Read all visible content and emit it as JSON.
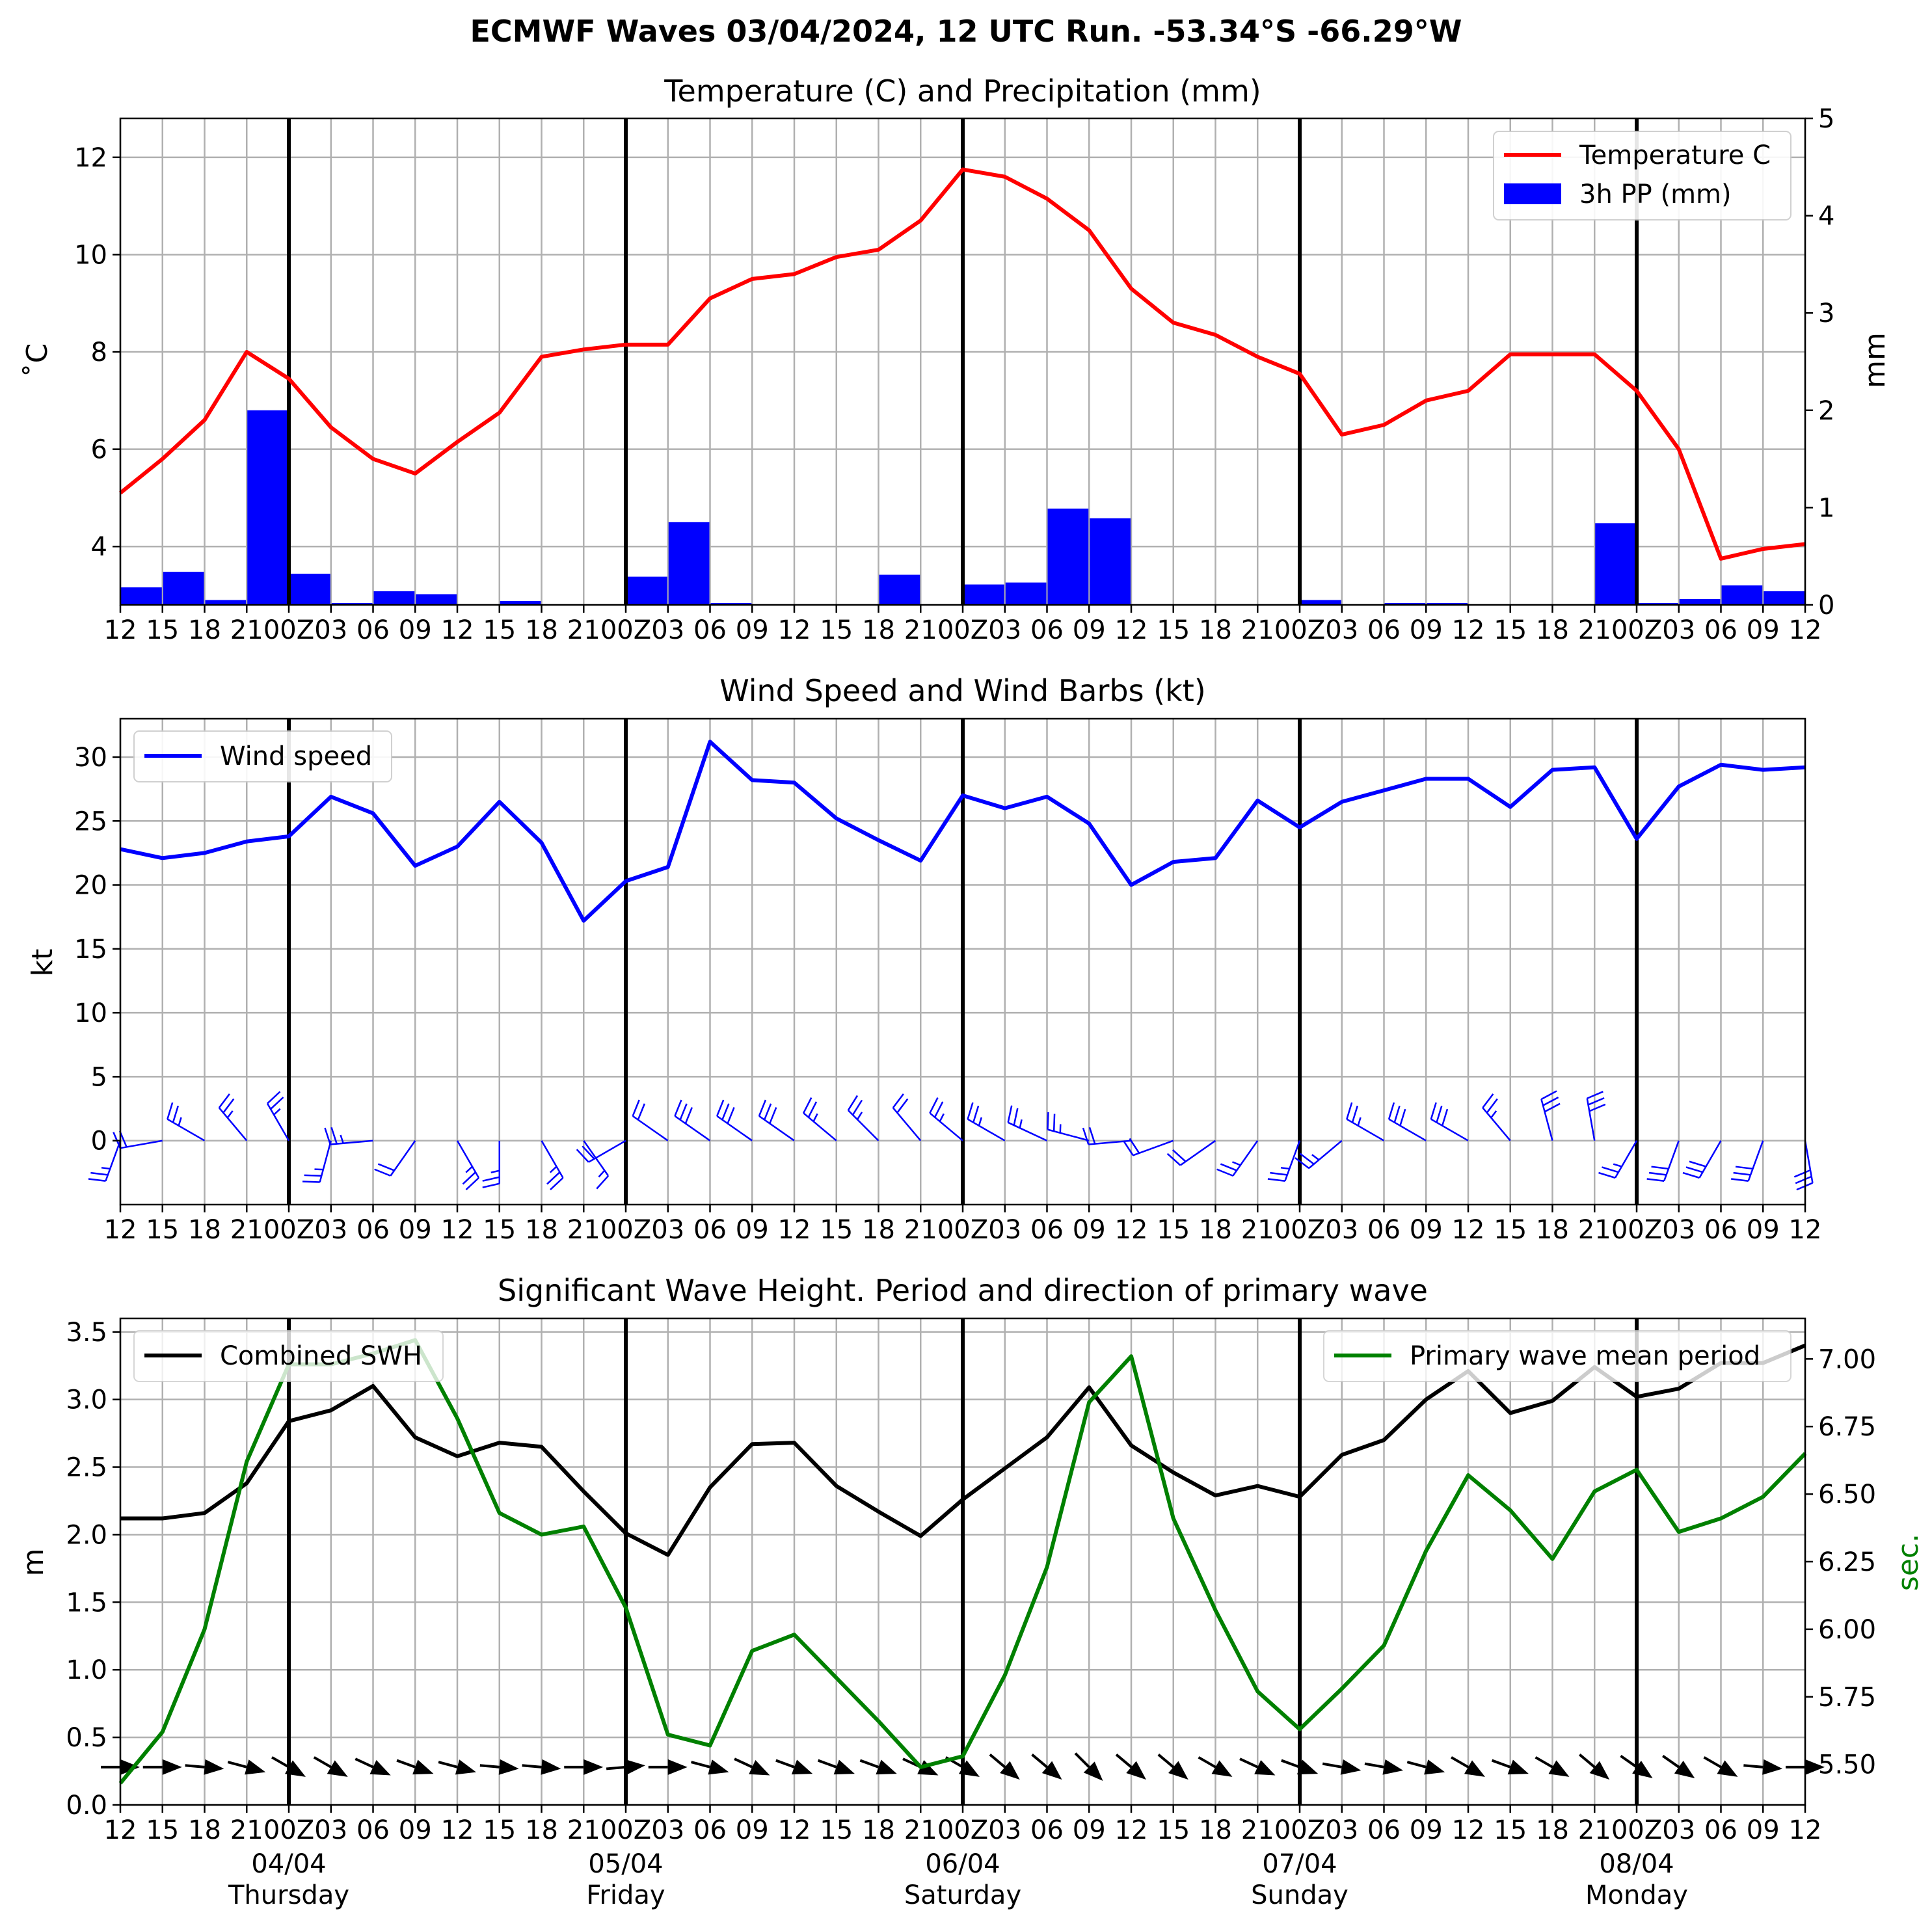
{
  "suptitle": "ECMWF Waves 03/04/2024, 12 UTC Run. -53.34°S -66.29°W",
  "colors": {
    "temp": "#ff0000",
    "precip": "#0000ff",
    "wind": "#0000ff",
    "swh": "#000000",
    "period": "#008000",
    "grid": "#b0b0b0"
  },
  "time_ticks": [
    "12",
    "15",
    "18",
    "21",
    "00Z",
    "03",
    "06",
    "09",
    "12",
    "15",
    "18",
    "21",
    "00Z",
    "03",
    "06",
    "09",
    "12",
    "15",
    "18",
    "21",
    "00Z",
    "03",
    "06",
    "09",
    "12",
    "15",
    "18",
    "21",
    "00Z",
    "03",
    "06",
    "09",
    "12",
    "15",
    "18",
    "21",
    "00Z",
    "03",
    "06",
    "09",
    "12"
  ],
  "day_labels": [
    {
      "date": "04/04",
      "day": "Thursday",
      "index": 4
    },
    {
      "date": "05/04",
      "day": "Friday",
      "index": 12
    },
    {
      "date": "06/04",
      "day": "Saturday",
      "index": 20
    },
    {
      "date": "07/04",
      "day": "Sunday",
      "index": 28
    },
    {
      "date": "08/04",
      "day": "Monday",
      "index": 36
    }
  ],
  "chart_data": [
    {
      "type": "line",
      "title": "Temperature (C) and Precipitation (mm)",
      "ylabel": "$^\\circ$C",
      "ylabel_display": "˚C",
      "y2label": "mm",
      "ylim": [
        2.8,
        12.8
      ],
      "y2lim": [
        0,
        5
      ],
      "yticks": [
        4,
        6,
        8,
        10,
        12
      ],
      "y2ticks": [
        0,
        1,
        2,
        3,
        4,
        5
      ],
      "legend_placement": "top-right",
      "series": [
        {
          "name": "Temperature C",
          "type": "line",
          "values": [
            5.1,
            5.8,
            6.6,
            8.0,
            7.45,
            6.45,
            5.8,
            5.5,
            6.15,
            6.75,
            7.9,
            8.05,
            8.15,
            8.15,
            9.1,
            9.5,
            9.6,
            9.95,
            10.1,
            10.7,
            11.75,
            11.6,
            11.15,
            10.5,
            9.3,
            8.6,
            8.35,
            7.9,
            7.55,
            6.3,
            6.5,
            7.0,
            7.2,
            7.95,
            7.95,
            7.95,
            7.2,
            6.0,
            3.75,
            3.95,
            4.05
          ]
        },
        {
          "name": "3h PP (mm)",
          "type": "bar",
          "values": [
            0.18,
            0.34,
            0.05,
            2.0,
            0.32,
            0.02,
            0.14,
            0.11,
            0,
            0.04,
            0,
            0,
            0.29,
            0.85,
            0.02,
            0,
            0,
            0,
            0.31,
            0,
            0.21,
            0.23,
            0.99,
            0.89,
            0,
            0,
            0,
            0,
            0.05,
            0,
            0.02,
            0.02,
            0,
            0,
            0,
            0.84,
            0.02,
            0.06,
            0.2,
            0.14
          ]
        }
      ]
    },
    {
      "type": "line",
      "title": "Wind Speed and Wind Barbs (kt)",
      "ylabel": "kt",
      "ylim": [
        -5,
        33
      ],
      "yticks": [
        0,
        5,
        10,
        15,
        20,
        25,
        30
      ],
      "legend_placement": "top-left",
      "series": [
        {
          "name": "Wind speed",
          "values": [
            22.8,
            22.1,
            22.5,
            23.4,
            23.8,
            26.9,
            25.6,
            21.5,
            23.0,
            26.5,
            23.3,
            17.2,
            20.3,
            21.4,
            31.2,
            28.2,
            28.0,
            25.2,
            23.5,
            21.9,
            27.0,
            26.0,
            26.9,
            24.8,
            20.0,
            21.8,
            22.1,
            26.6,
            24.5,
            26.5,
            27.4,
            28.3,
            28.3,
            26.1,
            29.0,
            29.2,
            23.6,
            27.7,
            29.4,
            29.0,
            29.2
          ]
        }
      ],
      "barb_direction_deg": [
        200,
        260,
        300,
        320,
        330,
        195,
        265,
        215,
        150,
        180,
        150,
        145,
        240,
        305,
        305,
        305,
        305,
        310,
        315,
        320,
        310,
        300,
        295,
        285,
        265,
        250,
        235,
        215,
        200,
        230,
        300,
        300,
        300,
        320,
        345,
        350,
        210,
        200,
        210,
        200,
        170
      ]
    },
    {
      "type": "line",
      "title": "Significant Wave Height. Period and direction of primary wave",
      "ylabel": "m",
      "y2label": "sec.",
      "ylim": [
        0,
        3.6
      ],
      "y2lim": [
        5.35,
        7.15
      ],
      "yticks": [
        0.0,
        0.5,
        1.0,
        1.5,
        2.0,
        2.5,
        3.0,
        3.5
      ],
      "y2ticks": [
        5.5,
        5.75,
        6.0,
        6.25,
        6.5,
        6.75,
        7.0
      ],
      "legend_placement": "top-left and top-right",
      "series": [
        {
          "name": "Combined SWH",
          "axis": "left",
          "values": [
            2.12,
            2.12,
            2.16,
            2.38,
            2.84,
            2.92,
            3.1,
            2.72,
            2.58,
            2.68,
            2.65,
            2.32,
            2.01,
            1.85,
            2.35,
            2.67,
            2.68,
            2.36,
            2.17,
            1.99,
            2.26,
            2.49,
            2.72,
            3.09,
            2.66,
            2.46,
            2.29,
            2.36,
            2.28,
            2.59,
            2.7,
            3.0,
            3.21,
            2.9,
            2.99,
            3.24,
            3.02,
            3.08,
            3.27,
            3.27,
            3.4
          ]
        },
        {
          "name": "Primary wave mean period",
          "axis": "right",
          "values": [
            5.43,
            5.62,
            6.0,
            6.62,
            6.98,
            6.98,
            7.02,
            7.07,
            6.78,
            6.43,
            6.35,
            6.38,
            6.08,
            5.61,
            5.57,
            5.92,
            5.98,
            5.82,
            5.66,
            5.49,
            5.53,
            5.83,
            6.23,
            6.84,
            7.01,
            6.41,
            6.07,
            5.77,
            5.63,
            5.78,
            5.94,
            6.29,
            6.57,
            6.44,
            6.26,
            6.51,
            6.59,
            6.36,
            6.41,
            6.49,
            6.65
          ]
        }
      ],
      "wave_direction_deg": [
        270,
        270,
        275,
        285,
        300,
        300,
        295,
        290,
        285,
        275,
        275,
        270,
        265,
        270,
        285,
        295,
        290,
        290,
        290,
        295,
        300,
        310,
        310,
        315,
        310,
        310,
        300,
        295,
        290,
        280,
        280,
        285,
        300,
        290,
        300,
        310,
        305,
        305,
        300,
        275,
        270
      ]
    }
  ]
}
